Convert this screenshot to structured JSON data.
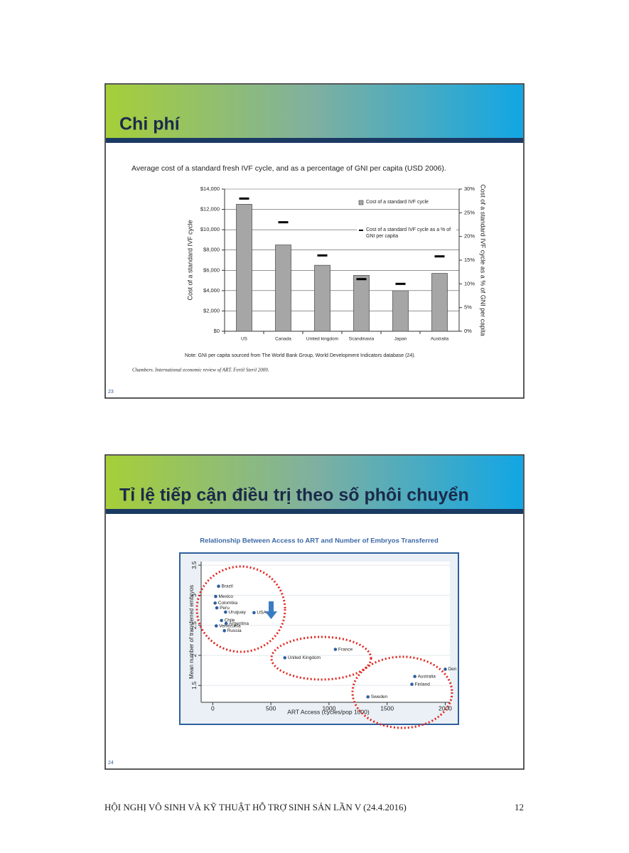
{
  "slides": [
    {
      "title": "Chi phí",
      "number": "23",
      "note": "Note: GNI per capita sourced from The World Bank Group, World Development Indicators database (24).",
      "citation": "Chambers. International economic review of ART. Fertil Steril 2009."
    },
    {
      "title": "Tỉ lệ tiếp cận điều trị theo số phôi chuyển",
      "number": "24"
    }
  ],
  "chart_data": [
    {
      "type": "bar",
      "title": "Average cost of a standard fresh IVF cycle, and as a percentage of GNI per capita (USD 2006).",
      "y_label": "Cost of a standard IVF cycle",
      "y2_label": "Cost of a standard IVF cycle as a % of GNI per capita",
      "categories": [
        "US",
        "Canada",
        "United kingdom",
        "Scandinavia",
        "Japan",
        "Australia"
      ],
      "series": [
        {
          "name": "Cost of a standard IVF cycle",
          "color": "#a6a6a6",
          "values": [
            12500,
            8500,
            6500,
            5500,
            4000,
            5700
          ]
        },
        {
          "name": "Cost of a standard IVF cycle as a % of GNI per capita",
          "color": "#000000",
          "axis": "y2",
          "values": [
            28,
            23,
            16,
            11,
            10,
            15.8
          ]
        }
      ],
      "ylim": [
        0,
        14000
      ],
      "yticks": [
        {
          "value": 0,
          "label": "$0"
        },
        {
          "value": 2000,
          "label": "$2,000"
        },
        {
          "value": 4000,
          "label": "$4,000"
        },
        {
          "value": 6000,
          "label": "$6,000"
        },
        {
          "value": 8000,
          "label": "$8,000"
        },
        {
          "value": 10000,
          "label": "$10,000"
        },
        {
          "value": 12000,
          "label": "$12,000"
        },
        {
          "value": 14000,
          "label": "$14,000"
        }
      ],
      "y2lim": [
        0,
        30
      ],
      "y2ticks": [
        {
          "value": 0,
          "label": "0%"
        },
        {
          "value": 5,
          "label": "5%"
        },
        {
          "value": 10,
          "label": "10%"
        },
        {
          "value": 15,
          "label": "15%"
        },
        {
          "value": 20,
          "label": "20%"
        },
        {
          "value": 25,
          "label": "25%"
        },
        {
          "value": 30,
          "label": "30%"
        }
      ],
      "legend": "top-right",
      "grid": true
    },
    {
      "type": "scatter",
      "title": "Relationship Between Access to ART and Number of Embryos Transferred",
      "x_label": "ART Access (cycles/pop 1000)",
      "y_label": "Mean number of transferred embryos",
      "series": [
        {
          "color": "#2f5f9e",
          "point_labels": [
            "Brazil",
            "Mexico",
            "Colombia",
            "Peru",
            "Uruguay",
            "USA",
            "Chile",
            "Argentina",
            "Venezuela",
            "Russia",
            "United Kingdom",
            "France",
            "Den",
            "Australia",
            "Finland",
            "Sweden"
          ],
          "x": [
            50,
            25,
            20,
            35,
            110,
            355,
            75,
            115,
            30,
            100,
            620,
            1055,
            2000,
            1738,
            1713,
            1335
          ],
          "values": [
            3.15,
            2.98,
            2.87,
            2.79,
            2.72,
            2.71,
            2.58,
            2.53,
            2.49,
            2.41,
            1.96,
            2.1,
            1.77,
            1.65,
            1.52,
            1.31
          ]
        }
      ],
      "xlim": [
        -100,
        2040
      ],
      "xticks": [
        0,
        500,
        1000,
        1500,
        2000
      ],
      "ylim": [
        1.22,
        3.56
      ],
      "yticks": [
        1.5,
        2,
        2.5,
        3,
        3.5
      ],
      "grid": true
    }
  ],
  "footer": {
    "text": "HỘI NGHỊ VÔ SINH VÀ KỸ THUẬT HỖ TRỢ SINH SẢN LẦN V (24.4.2016)",
    "page": "12"
  }
}
